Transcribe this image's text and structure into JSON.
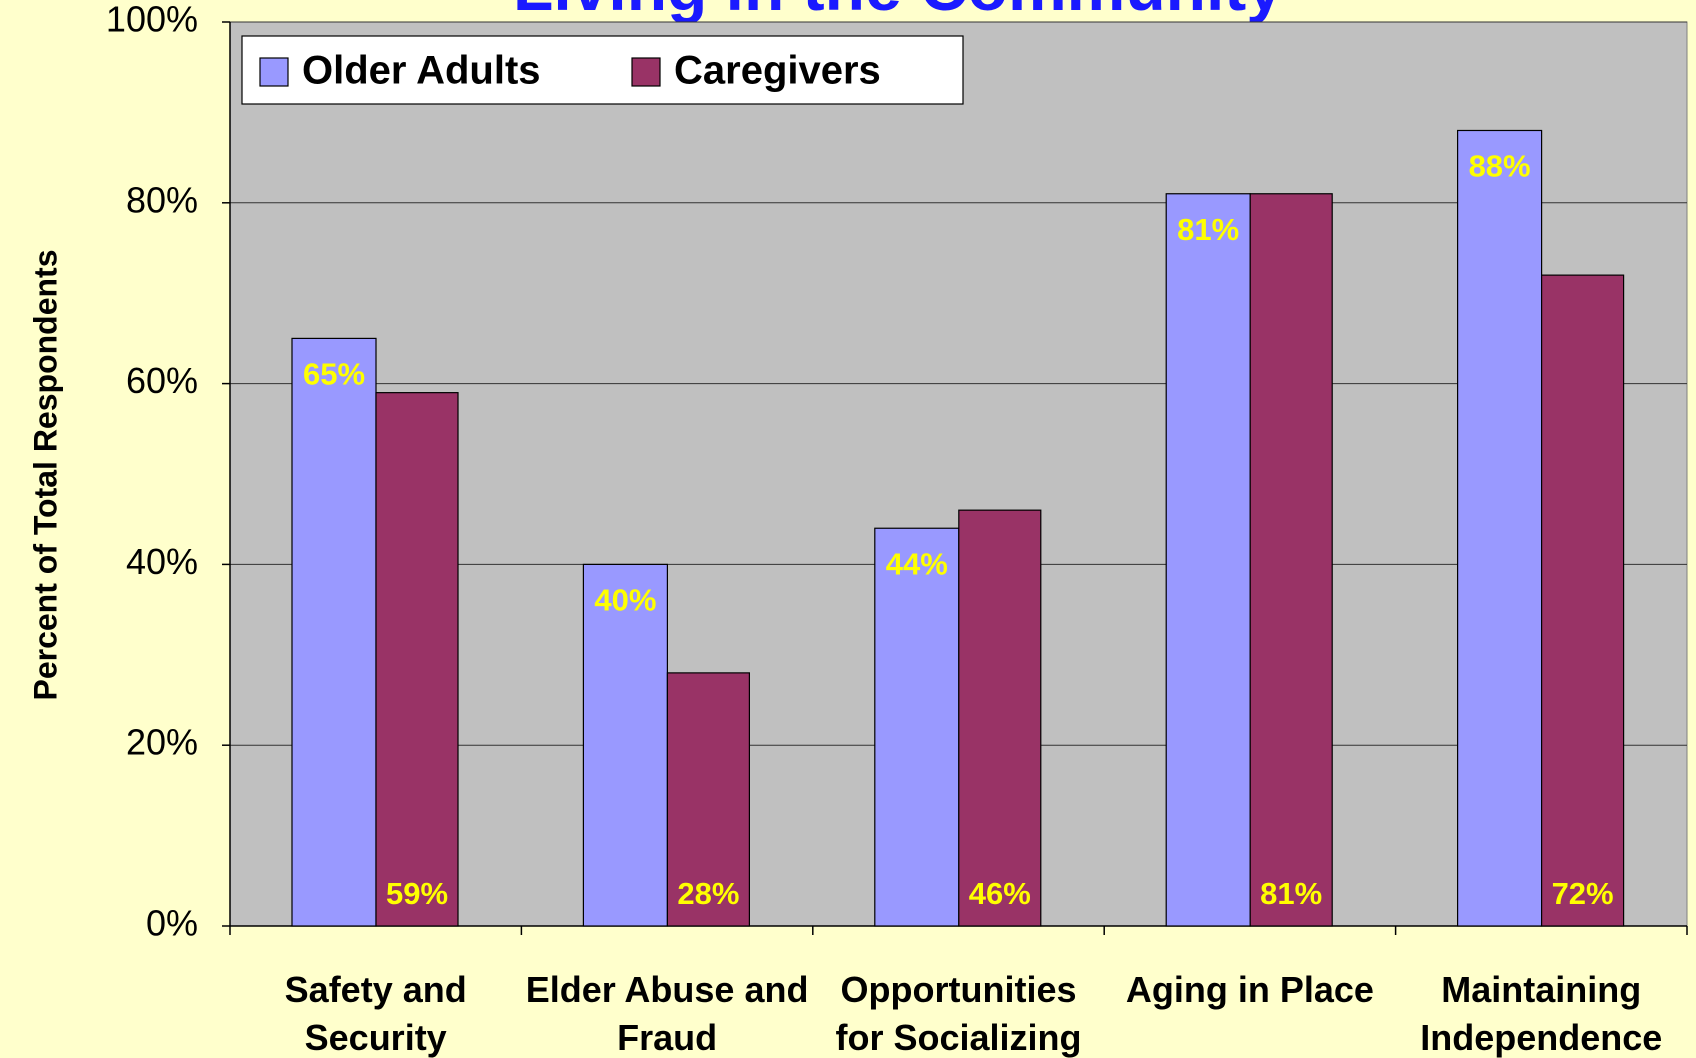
{
  "chart_data": {
    "type": "bar",
    "title": "Living in the Community",
    "y_label": "Percent of Total Respondents",
    "categories": [
      "Safety and Security",
      "Elder Abuse and Fraud",
      "Opportunities for Socializing",
      "Aging in Place",
      "Maintaining Independence"
    ],
    "series": [
      {
        "name": "Older Adults",
        "color": "#9999ff",
        "values": [
          65,
          40,
          44,
          81,
          88
        ],
        "value_labels": [
          "65%",
          "40%",
          "44%",
          "81%",
          "88%"
        ]
      },
      {
        "name": "Caregivers",
        "color": "#993366",
        "values": [
          59,
          28,
          46,
          81,
          72
        ],
        "value_labels": [
          "59%",
          "28%",
          "46%",
          "81%",
          "72%"
        ]
      }
    ],
    "ylim": [
      0,
      100
    ],
    "yticks": [
      {
        "value": 0,
        "label": "0%"
      },
      {
        "value": 20,
        "label": "20%"
      },
      {
        "value": 40,
        "label": "40%"
      },
      {
        "value": 60,
        "label": "60%"
      },
      {
        "value": 80,
        "label": "80%"
      },
      {
        "value": 100,
        "label": "100%"
      }
    ],
    "grid": true,
    "legend": "top-left"
  }
}
